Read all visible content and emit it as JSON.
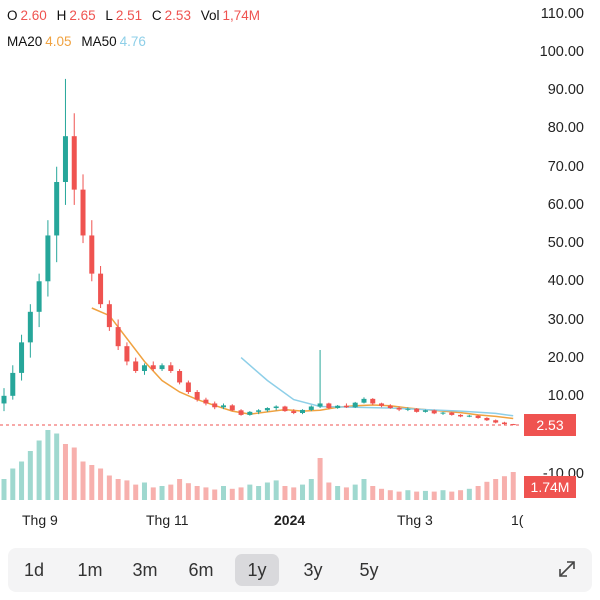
{
  "legend": {
    "o_label": "O",
    "o_value": "2.60",
    "h_label": "H",
    "h_value": "2.65",
    "l_label": "L",
    "l_value": "2.51",
    "c_label": "C",
    "c_value": "2.53",
    "vol_label": "Vol",
    "vol_value": "1,74M",
    "ma20_label": "MA20",
    "ma20_value": "4.05",
    "ma50_label": "MA50",
    "ma50_value": "4.76"
  },
  "price_tag": "2.53",
  "volume_tag": "1.74M",
  "colors": {
    "up": "#26a69a",
    "down": "#ef5350",
    "up_volume": "#9fd8cf",
    "down_volume": "#f7b0ad",
    "ma20": "#f0a240",
    "ma50": "#8ecfe8"
  },
  "ranges": [
    {
      "label": "1d",
      "active": false
    },
    {
      "label": "1m",
      "active": false
    },
    {
      "label": "3m",
      "active": false
    },
    {
      "label": "6m",
      "active": false
    },
    {
      "label": "1y",
      "active": true
    },
    {
      "label": "3y",
      "active": false
    },
    {
      "label": "5y",
      "active": false
    }
  ],
  "icons": {
    "expand": "expand-icon"
  },
  "chart_data": {
    "type": "candlestick",
    "y_ticks": [
      "110.00",
      "100.00",
      "90.00",
      "80.00",
      "70.00",
      "60.00",
      "50.00",
      "40.00",
      "30.00",
      "20.00",
      "10.00",
      "-10.00"
    ],
    "x_ticks": [
      "Thg 9",
      "Thg 11",
      "2024",
      "Thg 3",
      "1("
    ],
    "ylim": [
      0,
      110
    ],
    "last_close": 2.53,
    "grid": false,
    "dashed_price_line": true,
    "ohlc": [
      {
        "i": 0,
        "o": 8,
        "h": 12,
        "l": 6,
        "c": 10
      },
      {
        "i": 1,
        "o": 10,
        "h": 18,
        "l": 9,
        "c": 16
      },
      {
        "i": 2,
        "o": 16,
        "h": 26,
        "l": 14,
        "c": 24
      },
      {
        "i": 3,
        "o": 24,
        "h": 34,
        "l": 20,
        "c": 32
      },
      {
        "i": 4,
        "o": 32,
        "h": 42,
        "l": 28,
        "c": 40
      },
      {
        "i": 5,
        "o": 40,
        "h": 56,
        "l": 36,
        "c": 52
      },
      {
        "i": 6,
        "o": 52,
        "h": 70,
        "l": 45,
        "c": 66
      },
      {
        "i": 7,
        "o": 66,
        "h": 93,
        "l": 60,
        "c": 78
      },
      {
        "i": 8,
        "o": 78,
        "h": 84,
        "l": 60,
        "c": 64
      },
      {
        "i": 9,
        "o": 64,
        "h": 68,
        "l": 50,
        "c": 52
      },
      {
        "i": 10,
        "o": 52,
        "h": 56,
        "l": 40,
        "c": 42
      },
      {
        "i": 11,
        "o": 42,
        "h": 44,
        "l": 33,
        "c": 34
      },
      {
        "i": 12,
        "o": 34,
        "h": 35,
        "l": 27,
        "c": 28
      },
      {
        "i": 13,
        "o": 28,
        "h": 30,
        "l": 22,
        "c": 23
      },
      {
        "i": 14,
        "o": 23,
        "h": 24,
        "l": 18,
        "c": 19
      },
      {
        "i": 15,
        "o": 19,
        "h": 20,
        "l": 16,
        "c": 16.5
      },
      {
        "i": 16,
        "o": 16.5,
        "h": 18.5,
        "l": 15.5,
        "c": 18
      },
      {
        "i": 17,
        "o": 18,
        "h": 19,
        "l": 16.5,
        "c": 17
      },
      {
        "i": 18,
        "o": 17,
        "h": 18.5,
        "l": 16.5,
        "c": 18
      },
      {
        "i": 19,
        "o": 18,
        "h": 18.8,
        "l": 16,
        "c": 16.5
      },
      {
        "i": 20,
        "o": 16.5,
        "h": 17,
        "l": 13,
        "c": 13.5
      },
      {
        "i": 21,
        "o": 13.5,
        "h": 14,
        "l": 10.5,
        "c": 11
      },
      {
        "i": 22,
        "o": 11,
        "h": 11.5,
        "l": 8.5,
        "c": 9
      },
      {
        "i": 23,
        "o": 9,
        "h": 9.5,
        "l": 7.5,
        "c": 8
      },
      {
        "i": 24,
        "o": 8,
        "h": 8.5,
        "l": 6.5,
        "c": 7
      },
      {
        "i": 25,
        "o": 7,
        "h": 8,
        "l": 6.5,
        "c": 7.5
      },
      {
        "i": 26,
        "o": 7.5,
        "h": 7.8,
        "l": 6,
        "c": 6.2
      },
      {
        "i": 27,
        "o": 6.2,
        "h": 6.5,
        "l": 4.8,
        "c": 5
      },
      {
        "i": 28,
        "o": 5,
        "h": 6,
        "l": 4.8,
        "c": 5.8
      },
      {
        "i": 29,
        "o": 5.8,
        "h": 6.5,
        "l": 5.2,
        "c": 6.2
      },
      {
        "i": 30,
        "o": 6.2,
        "h": 7,
        "l": 5.8,
        "c": 6.8
      },
      {
        "i": 31,
        "o": 6.8,
        "h": 7.5,
        "l": 6.2,
        "c": 7.2
      },
      {
        "i": 32,
        "o": 7.2,
        "h": 7.4,
        "l": 5.8,
        "c": 6
      },
      {
        "i": 33,
        "o": 6,
        "h": 6.5,
        "l": 5.2,
        "c": 5.5
      },
      {
        "i": 34,
        "o": 5.5,
        "h": 6.5,
        "l": 5.2,
        "c": 6.3
      },
      {
        "i": 35,
        "o": 6.3,
        "h": 7.5,
        "l": 6,
        "c": 7.2
      },
      {
        "i": 36,
        "o": 7.2,
        "h": 22,
        "l": 6.8,
        "c": 8
      },
      {
        "i": 37,
        "o": 8,
        "h": 8.2,
        "l": 6.5,
        "c": 6.8
      },
      {
        "i": 38,
        "o": 6.8,
        "h": 7.6,
        "l": 6.6,
        "c": 7.4
      },
      {
        "i": 39,
        "o": 7.4,
        "h": 8,
        "l": 6.8,
        "c": 7
      },
      {
        "i": 40,
        "o": 7,
        "h": 8.4,
        "l": 6.8,
        "c": 8.2
      },
      {
        "i": 41,
        "o": 8.2,
        "h": 9.6,
        "l": 8,
        "c": 9.2
      },
      {
        "i": 42,
        "o": 9.2,
        "h": 9.4,
        "l": 7.6,
        "c": 8
      },
      {
        "i": 43,
        "o": 8,
        "h": 8.2,
        "l": 7,
        "c": 7.4
      },
      {
        "i": 44,
        "o": 7.4,
        "h": 7.8,
        "l": 6.6,
        "c": 6.8
      },
      {
        "i": 45,
        "o": 6.8,
        "h": 7.2,
        "l": 6,
        "c": 6.4
      },
      {
        "i": 46,
        "o": 6.4,
        "h": 7,
        "l": 6,
        "c": 6.6
      },
      {
        "i": 47,
        "o": 6.6,
        "h": 6.8,
        "l": 5.6,
        "c": 5.8
      },
      {
        "i": 48,
        "o": 5.8,
        "h": 6.4,
        "l": 5.6,
        "c": 6.2
      },
      {
        "i": 49,
        "o": 6.2,
        "h": 6.4,
        "l": 5.2,
        "c": 5.4
      },
      {
        "i": 50,
        "o": 5.4,
        "h": 5.8,
        "l": 5,
        "c": 5.6
      },
      {
        "i": 51,
        "o": 5.6,
        "h": 5.8,
        "l": 4.8,
        "c": 5
      },
      {
        "i": 52,
        "o": 5,
        "h": 5.2,
        "l": 4.4,
        "c": 4.6
      },
      {
        "i": 53,
        "o": 4.6,
        "h": 5,
        "l": 4.4,
        "c": 4.8
      },
      {
        "i": 54,
        "o": 4.8,
        "h": 5,
        "l": 4,
        "c": 4.2
      },
      {
        "i": 55,
        "o": 4.2,
        "h": 4.4,
        "l": 3.4,
        "c": 3.6
      },
      {
        "i": 56,
        "o": 3.6,
        "h": 3.8,
        "l": 2.8,
        "c": 3
      },
      {
        "i": 57,
        "o": 3,
        "h": 3.2,
        "l": 2.5,
        "c": 2.6
      },
      {
        "i": 58,
        "o": 2.6,
        "h": 2.65,
        "l": 2.51,
        "c": 2.53
      }
    ],
    "ma20": [
      [
        10,
        33
      ],
      [
        12,
        31
      ],
      [
        14,
        25
      ],
      [
        16,
        19
      ],
      [
        18,
        14
      ],
      [
        20,
        11
      ],
      [
        22,
        9
      ],
      [
        24,
        7.5
      ],
      [
        26,
        6
      ],
      [
        28,
        5.2
      ],
      [
        30,
        5.8
      ],
      [
        32,
        6.4
      ],
      [
        34,
        6
      ],
      [
        36,
        6.2
      ],
      [
        38,
        7
      ],
      [
        40,
        7.4
      ],
      [
        42,
        7.6
      ],
      [
        44,
        7.4
      ],
      [
        46,
        6.8
      ],
      [
        48,
        6.4
      ],
      [
        50,
        6
      ],
      [
        52,
        5.6
      ],
      [
        54,
        5
      ],
      [
        56,
        4.6
      ],
      [
        58,
        4.05
      ]
    ],
    "ma50": [
      [
        27,
        20
      ],
      [
        30,
        14
      ],
      [
        33,
        9
      ],
      [
        36,
        7.2
      ],
      [
        40,
        7
      ],
      [
        44,
        6.8
      ],
      [
        48,
        6.4
      ],
      [
        52,
        6
      ],
      [
        56,
        5.4
      ],
      [
        58,
        4.76
      ]
    ],
    "volume": [
      {
        "i": 0,
        "v": 0.3,
        "up": true
      },
      {
        "i": 1,
        "v": 0.45,
        "up": true
      },
      {
        "i": 2,
        "v": 0.55,
        "up": true
      },
      {
        "i": 3,
        "v": 0.7,
        "up": true
      },
      {
        "i": 4,
        "v": 0.85,
        "up": true
      },
      {
        "i": 5,
        "v": 1.0,
        "up": true
      },
      {
        "i": 6,
        "v": 0.95,
        "up": true
      },
      {
        "i": 7,
        "v": 0.8,
        "up": false
      },
      {
        "i": 8,
        "v": 0.75,
        "up": false
      },
      {
        "i": 9,
        "v": 0.55,
        "up": false
      },
      {
        "i": 10,
        "v": 0.5,
        "up": false
      },
      {
        "i": 11,
        "v": 0.45,
        "up": false
      },
      {
        "i": 12,
        "v": 0.35,
        "up": false
      },
      {
        "i": 13,
        "v": 0.3,
        "up": false
      },
      {
        "i": 14,
        "v": 0.28,
        "up": false
      },
      {
        "i": 15,
        "v": 0.22,
        "up": false
      },
      {
        "i": 16,
        "v": 0.25,
        "up": true
      },
      {
        "i": 17,
        "v": 0.18,
        "up": false
      },
      {
        "i": 18,
        "v": 0.2,
        "up": true
      },
      {
        "i": 19,
        "v": 0.22,
        "up": false
      },
      {
        "i": 20,
        "v": 0.3,
        "up": false
      },
      {
        "i": 21,
        "v": 0.24,
        "up": false
      },
      {
        "i": 22,
        "v": 0.2,
        "up": false
      },
      {
        "i": 23,
        "v": 0.18,
        "up": false
      },
      {
        "i": 24,
        "v": 0.15,
        "up": false
      },
      {
        "i": 25,
        "v": 0.2,
        "up": true
      },
      {
        "i": 26,
        "v": 0.16,
        "up": false
      },
      {
        "i": 27,
        "v": 0.18,
        "up": false
      },
      {
        "i": 28,
        "v": 0.22,
        "up": true
      },
      {
        "i": 29,
        "v": 0.2,
        "up": true
      },
      {
        "i": 30,
        "v": 0.25,
        "up": true
      },
      {
        "i": 31,
        "v": 0.28,
        "up": true
      },
      {
        "i": 32,
        "v": 0.2,
        "up": false
      },
      {
        "i": 33,
        "v": 0.18,
        "up": false
      },
      {
        "i": 34,
        "v": 0.22,
        "up": true
      },
      {
        "i": 35,
        "v": 0.3,
        "up": true
      },
      {
        "i": 36,
        "v": 0.6,
        "up": false
      },
      {
        "i": 37,
        "v": 0.25,
        "up": false
      },
      {
        "i": 38,
        "v": 0.2,
        "up": true
      },
      {
        "i": 39,
        "v": 0.18,
        "up": false
      },
      {
        "i": 40,
        "v": 0.22,
        "up": true
      },
      {
        "i": 41,
        "v": 0.3,
        "up": true
      },
      {
        "i": 42,
        "v": 0.2,
        "up": false
      },
      {
        "i": 43,
        "v": 0.16,
        "up": false
      },
      {
        "i": 44,
        "v": 0.14,
        "up": false
      },
      {
        "i": 45,
        "v": 0.12,
        "up": false
      },
      {
        "i": 46,
        "v": 0.14,
        "up": true
      },
      {
        "i": 47,
        "v": 0.12,
        "up": false
      },
      {
        "i": 48,
        "v": 0.13,
        "up": true
      },
      {
        "i": 49,
        "v": 0.12,
        "up": false
      },
      {
        "i": 50,
        "v": 0.14,
        "up": true
      },
      {
        "i": 51,
        "v": 0.12,
        "up": false
      },
      {
        "i": 52,
        "v": 0.14,
        "up": false
      },
      {
        "i": 53,
        "v": 0.16,
        "up": true
      },
      {
        "i": 54,
        "v": 0.2,
        "up": false
      },
      {
        "i": 55,
        "v": 0.26,
        "up": false
      },
      {
        "i": 56,
        "v": 0.3,
        "up": false
      },
      {
        "i": 57,
        "v": 0.34,
        "up": false
      },
      {
        "i": 58,
        "v": 0.4,
        "up": false
      }
    ]
  }
}
